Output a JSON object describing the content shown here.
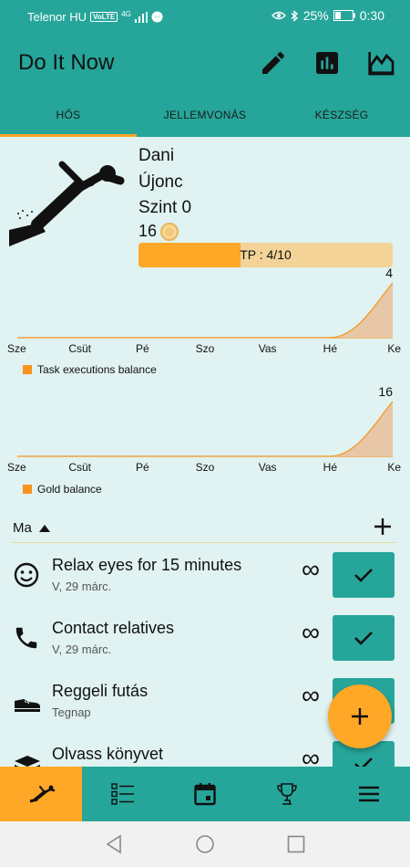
{
  "status_bar": {
    "carrier": "Telenor HU",
    "volte": "VoLTE",
    "network": "4G",
    "battery": "25%",
    "time": "0:30"
  },
  "app": {
    "title": "Do It Now"
  },
  "actions": [
    {
      "icon": "pencil-icon"
    },
    {
      "icon": "bar-chart-icon"
    },
    {
      "icon": "area-chart-icon"
    }
  ],
  "tabs": [
    {
      "label": "HŐS",
      "active": true
    },
    {
      "label": "JELLEMVONÁS",
      "active": false
    },
    {
      "label": "KÉSZSÉG",
      "active": false
    }
  ],
  "hero": {
    "name": "Dani",
    "rank": "Újonc",
    "level": "Szint 0",
    "gold": "16",
    "tp": {
      "label": "TP : 4/10",
      "value": 4,
      "max": 10
    }
  },
  "chart_data": [
    {
      "type": "area",
      "categories": [
        "Sze",
        "Csüt",
        "Pé",
        "Szo",
        "Vas",
        "Hé",
        "Ke"
      ],
      "series": [
        {
          "name": "Task executions balance",
          "values": [
            0,
            0,
            0,
            0,
            0,
            0,
            4
          ]
        }
      ],
      "end_label": "4",
      "color": "#f7931e"
    },
    {
      "type": "area",
      "categories": [
        "Sze",
        "Csüt",
        "Pé",
        "Szo",
        "Vas",
        "Hé",
        "Ke"
      ],
      "series": [
        {
          "name": "Gold balance",
          "values": [
            0,
            0,
            0,
            0,
            0,
            0,
            16
          ]
        }
      ],
      "end_label": "16",
      "color": "#f7931e"
    }
  ],
  "task_section": {
    "label": "Ma"
  },
  "tasks": [
    {
      "title": "Relax eyes for 15 minutes",
      "date": "V, 29 márc.",
      "icon": "smiley-icon",
      "repeat": "∞"
    },
    {
      "title": "Contact relatives",
      "date": "V, 29 márc.",
      "icon": "phone-icon",
      "repeat": "∞"
    },
    {
      "title": "Reggeli futás",
      "date": "Tegnap",
      "icon": "shoe-icon",
      "repeat": "∞"
    },
    {
      "title": "Olvass könyvet",
      "date": "",
      "icon": "books-icon",
      "repeat": "∞"
    }
  ],
  "colors": {
    "primary": "#26a69a",
    "accent": "#ffa726",
    "background": "#e0f2f1"
  }
}
